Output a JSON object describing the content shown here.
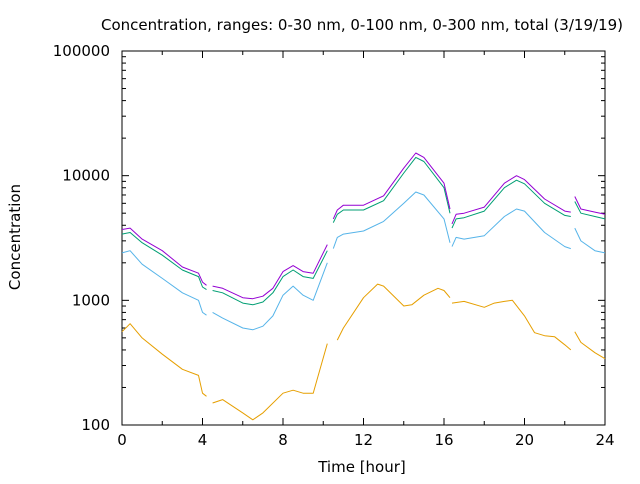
{
  "chart_data": {
    "type": "line",
    "title": "Concentration, ranges: 0-30 nm, 0-100 nm, 0-300 nm, total (3/19/19)",
    "xlabel": "Time [hour]",
    "ylabel": "Concentration",
    "xlim": [
      0,
      24
    ],
    "ylim": [
      100,
      100000
    ],
    "yscale": "log",
    "xticks": [
      "0",
      "4",
      "8",
      "12",
      "16",
      "20",
      "24"
    ],
    "yticks": [
      "100",
      "1000",
      "10000",
      "100000"
    ],
    "grid": false,
    "legend": "none",
    "series": [
      {
        "color": "#e69f00",
        "segments": [
          [
            [
              0,
              560
            ],
            [
              0.4,
              650
            ],
            [
              1,
              500
            ],
            [
              2,
              370
            ],
            [
              3,
              280
            ],
            [
              3.8,
              250
            ],
            [
              4,
              180
            ],
            [
              4.2,
              170
            ]
          ],
          [
            [
              4.5,
              150
            ],
            [
              5,
              160
            ],
            [
              6,
              125
            ],
            [
              6.5,
              110
            ],
            [
              7,
              125
            ],
            [
              8,
              180
            ],
            [
              8.5,
              190
            ],
            [
              9,
              180
            ],
            [
              9.5,
              180
            ],
            [
              10.2,
              450
            ]
          ],
          [
            [
              10.7,
              480
            ],
            [
              11,
              600
            ],
            [
              12,
              1050
            ],
            [
              12.7,
              1350
            ],
            [
              13,
              1300
            ],
            [
              14,
              900
            ],
            [
              14.4,
              920
            ],
            [
              15,
              1100
            ],
            [
              15.7,
              1250
            ],
            [
              16,
              1200
            ],
            [
              16.3,
              1050
            ]
          ],
          [
            [
              16.4,
              950
            ],
            [
              17,
              980
            ],
            [
              18,
              880
            ],
            [
              18.5,
              950
            ],
            [
              19,
              980
            ],
            [
              19.4,
              1000
            ],
            [
              20,
              750
            ],
            [
              20.5,
              550
            ],
            [
              21,
              520
            ],
            [
              21.5,
              510
            ],
            [
              22,
              440
            ],
            [
              22.3,
              400
            ]
          ],
          [
            [
              22.5,
              560
            ],
            [
              22.8,
              460
            ],
            [
              23.5,
              380
            ],
            [
              24,
              340
            ]
          ]
        ]
      },
      {
        "color": "#56b4e9",
        "segments": [
          [
            [
              0,
              2400
            ],
            [
              0.4,
              2500
            ],
            [
              1,
              1950
            ],
            [
              2,
              1500
            ],
            [
              3,
              1150
            ],
            [
              3.8,
              1000
            ],
            [
              4,
              800
            ],
            [
              4.2,
              760
            ]
          ],
          [
            [
              4.5,
              800
            ],
            [
              5,
              720
            ],
            [
              6,
              600
            ],
            [
              6.5,
              580
            ],
            [
              7,
              620
            ],
            [
              7.5,
              750
            ],
            [
              8,
              1100
            ],
            [
              8.5,
              1300
            ],
            [
              9,
              1100
            ],
            [
              9.5,
              1000
            ],
            [
              10.2,
              2000
            ]
          ],
          [
            [
              10.5,
              2600
            ],
            [
              10.7,
              3200
            ],
            [
              11,
              3400
            ],
            [
              12,
              3600
            ],
            [
              13,
              4300
            ],
            [
              14,
              6000
            ],
            [
              14.6,
              7400
            ],
            [
              15,
              7000
            ],
            [
              16,
              4500
            ],
            [
              16.3,
              2900
            ]
          ],
          [
            [
              16.4,
              2700
            ],
            [
              16.6,
              3200
            ],
            [
              17,
              3100
            ],
            [
              18,
              3300
            ],
            [
              19,
              4700
            ],
            [
              19.6,
              5400
            ],
            [
              20,
              5200
            ],
            [
              21,
              3500
            ],
            [
              22,
              2700
            ],
            [
              22.3,
              2600
            ]
          ],
          [
            [
              22.5,
              3800
            ],
            [
              22.8,
              3000
            ],
            [
              23.5,
              2500
            ],
            [
              24,
              2400
            ]
          ]
        ]
      },
      {
        "color": "#009e73",
        "segments": [
          [
            [
              0,
              3400
            ],
            [
              0.4,
              3500
            ],
            [
              1,
              2900
            ],
            [
              2,
              2300
            ],
            [
              3,
              1750
            ],
            [
              3.8,
              1550
            ],
            [
              4,
              1280
            ],
            [
              4.2,
              1220
            ]
          ],
          [
            [
              4.5,
              1200
            ],
            [
              5,
              1150
            ],
            [
              6,
              950
            ],
            [
              6.5,
              920
            ],
            [
              7,
              970
            ],
            [
              7.5,
              1150
            ],
            [
              8,
              1550
            ],
            [
              8.5,
              1750
            ],
            [
              9,
              1550
            ],
            [
              9.5,
              1500
            ],
            [
              10.2,
              2500
            ]
          ],
          [
            [
              10.5,
              4200
            ],
            [
              10.7,
              4900
            ],
            [
              11,
              5300
            ],
            [
              12,
              5300
            ],
            [
              13,
              6300
            ],
            [
              14,
              10500
            ],
            [
              14.6,
              14000
            ],
            [
              15,
              13000
            ],
            [
              16,
              8000
            ],
            [
              16.3,
              5000
            ]
          ],
          [
            [
              16.4,
              3800
            ],
            [
              16.6,
              4500
            ],
            [
              17,
              4600
            ],
            [
              18,
              5200
            ],
            [
              19,
              8000
            ],
            [
              19.6,
              9200
            ],
            [
              20,
              8600
            ],
            [
              21,
              6000
            ],
            [
              22,
              4800
            ],
            [
              22.3,
              4700
            ]
          ],
          [
            [
              22.5,
              6200
            ],
            [
              22.8,
              5000
            ],
            [
              23.5,
              4700
            ],
            [
              24,
              4500
            ]
          ]
        ]
      },
      {
        "color": "#9400d3",
        "segments": [
          [
            [
              0,
              3700
            ],
            [
              0.4,
              3800
            ],
            [
              1,
              3100
            ],
            [
              2,
              2500
            ],
            [
              3,
              1850
            ],
            [
              3.8,
              1650
            ],
            [
              4,
              1400
            ],
            [
              4.2,
              1320
            ]
          ],
          [
            [
              4.5,
              1300
            ],
            [
              5,
              1250
            ],
            [
              6,
              1050
            ],
            [
              6.5,
              1030
            ],
            [
              7,
              1080
            ],
            [
              7.5,
              1250
            ],
            [
              8,
              1700
            ],
            [
              8.5,
              1900
            ],
            [
              9,
              1700
            ],
            [
              9.5,
              1650
            ],
            [
              10.2,
              2800
            ]
          ],
          [
            [
              10.5,
              4500
            ],
            [
              10.7,
              5300
            ],
            [
              11,
              5800
            ],
            [
              12,
              5800
            ],
            [
              13,
              6900
            ],
            [
              14,
              11500
            ],
            [
              14.6,
              15200
            ],
            [
              15,
              14000
            ],
            [
              16,
              8700
            ],
            [
              16.3,
              5400
            ]
          ],
          [
            [
              16.4,
              4100
            ],
            [
              16.6,
              4900
            ],
            [
              17,
              5000
            ],
            [
              18,
              5600
            ],
            [
              19,
              8700
            ],
            [
              19.6,
              10000
            ],
            [
              20,
              9300
            ],
            [
              21,
              6500
            ],
            [
              22,
              5200
            ],
            [
              22.3,
              5100
            ]
          ],
          [
            [
              22.5,
              6800
            ],
            [
              22.8,
              5400
            ],
            [
              23.5,
              5100
            ],
            [
              24,
              4900
            ]
          ]
        ]
      }
    ]
  }
}
